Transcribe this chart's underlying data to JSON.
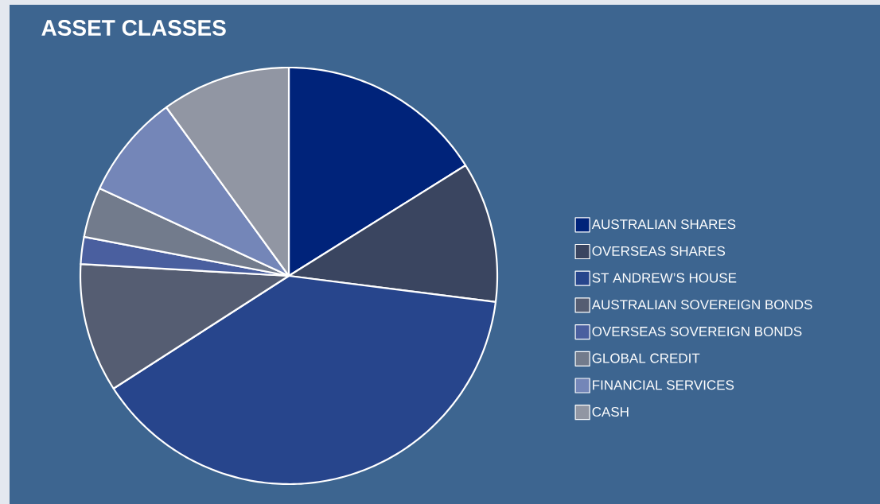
{
  "chart_data": {
    "type": "pie",
    "title": "ASSET CLASSES",
    "categories": [
      "AUSTRALIAN SHARES",
      "OVERSEAS SHARES",
      "ST ANDREW’S HOUSE",
      "AUSTRALIAN SOVEREIGN BONDS",
      "OVERSEAS SOVEREIGN BONDS",
      "GLOBAL CREDIT",
      "FINANCIAL SERVICES",
      "CASH"
    ],
    "values": [
      16.1,
      10.9,
      38.9,
      10.0,
      2.1,
      3.9,
      8.1,
      10.0
    ],
    "colors": [
      "#00237a",
      "#3a4560",
      "#27458c",
      "#555d72",
      "#4a5f9f",
      "#727b8c",
      "#7486b8",
      "#9196a3"
    ],
    "legend": "right"
  }
}
